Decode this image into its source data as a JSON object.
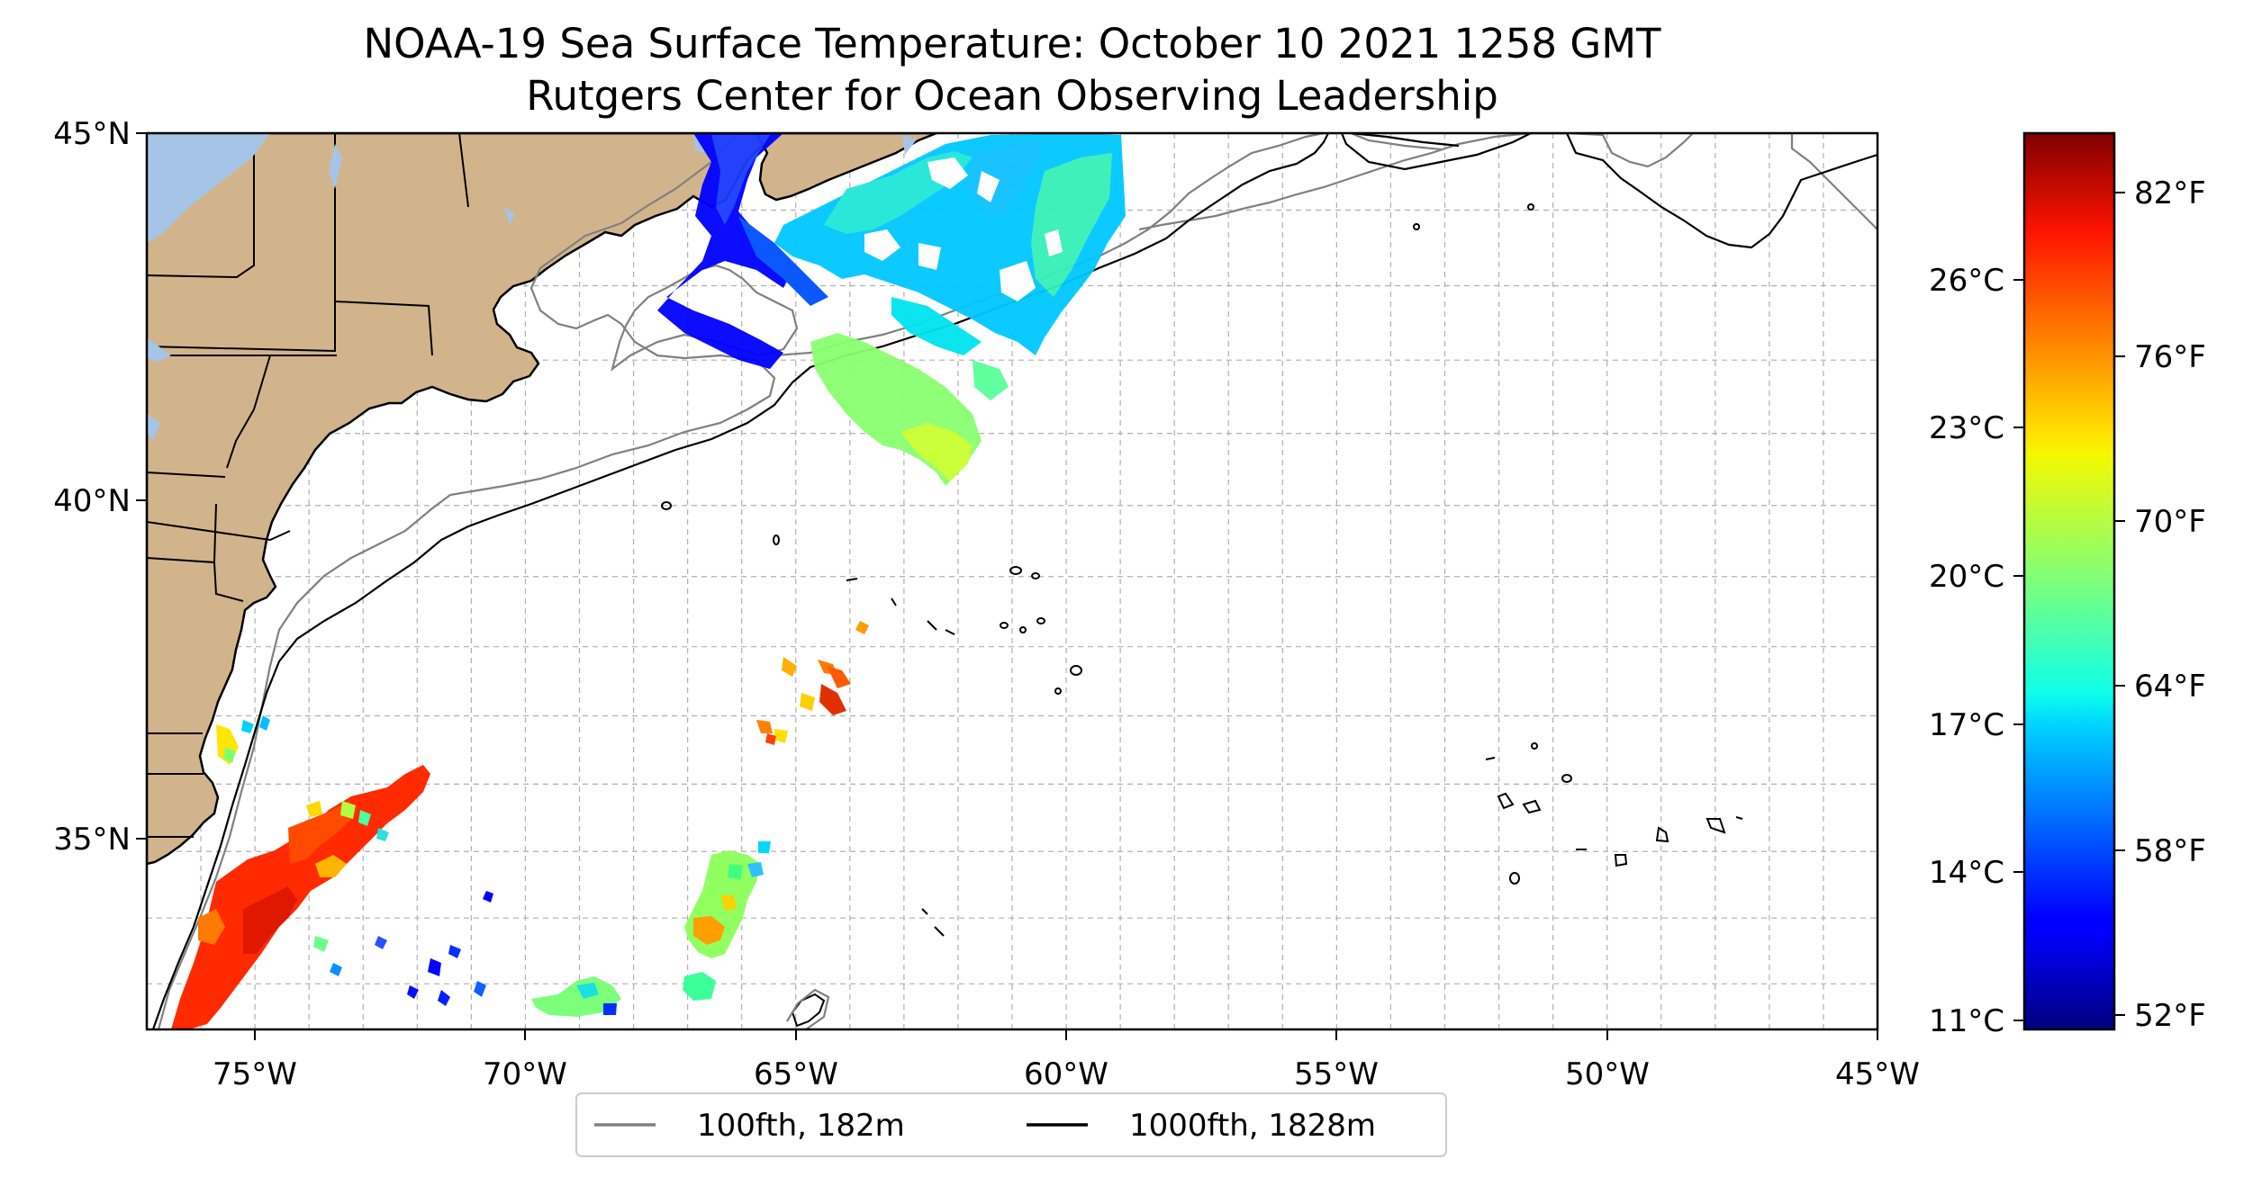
{
  "title": {
    "line1": "NOAA-19 Sea Surface Temperature: October 10 2021 1258 GMT",
    "line2": "Rutgers Center for Ocean Observing Leadership"
  },
  "axes": {
    "lon_ticks": [
      "75°W",
      "70°W",
      "65°W",
      "60°W",
      "55°W",
      "50°W",
      "45°W"
    ],
    "lat_ticks": [
      "45°N",
      "40°N",
      "35°N"
    ],
    "lon_range": [
      -77,
      -45
    ],
    "lat_range": [
      32.3,
      45
    ]
  },
  "colorbar": {
    "celsius_ticks": [
      "26°C",
      "23°C",
      "20°C",
      "17°C",
      "14°C",
      "11°C"
    ],
    "fahrenheit_ticks": [
      "82°F",
      "76°F",
      "70°F",
      "64°F",
      "58°F",
      "52°F"
    ],
    "colormap": "jet",
    "range_f": [
      51,
      85
    ]
  },
  "legend": {
    "items": [
      {
        "label": "100fth, 182m",
        "color": "#808080"
      },
      {
        "label": "1000fth, 1828m",
        "color": "#000000"
      }
    ]
  },
  "colors": {
    "land": "#d2b48c",
    "lakes": "#a6c4e6",
    "grid": "#b0b0b0"
  }
}
